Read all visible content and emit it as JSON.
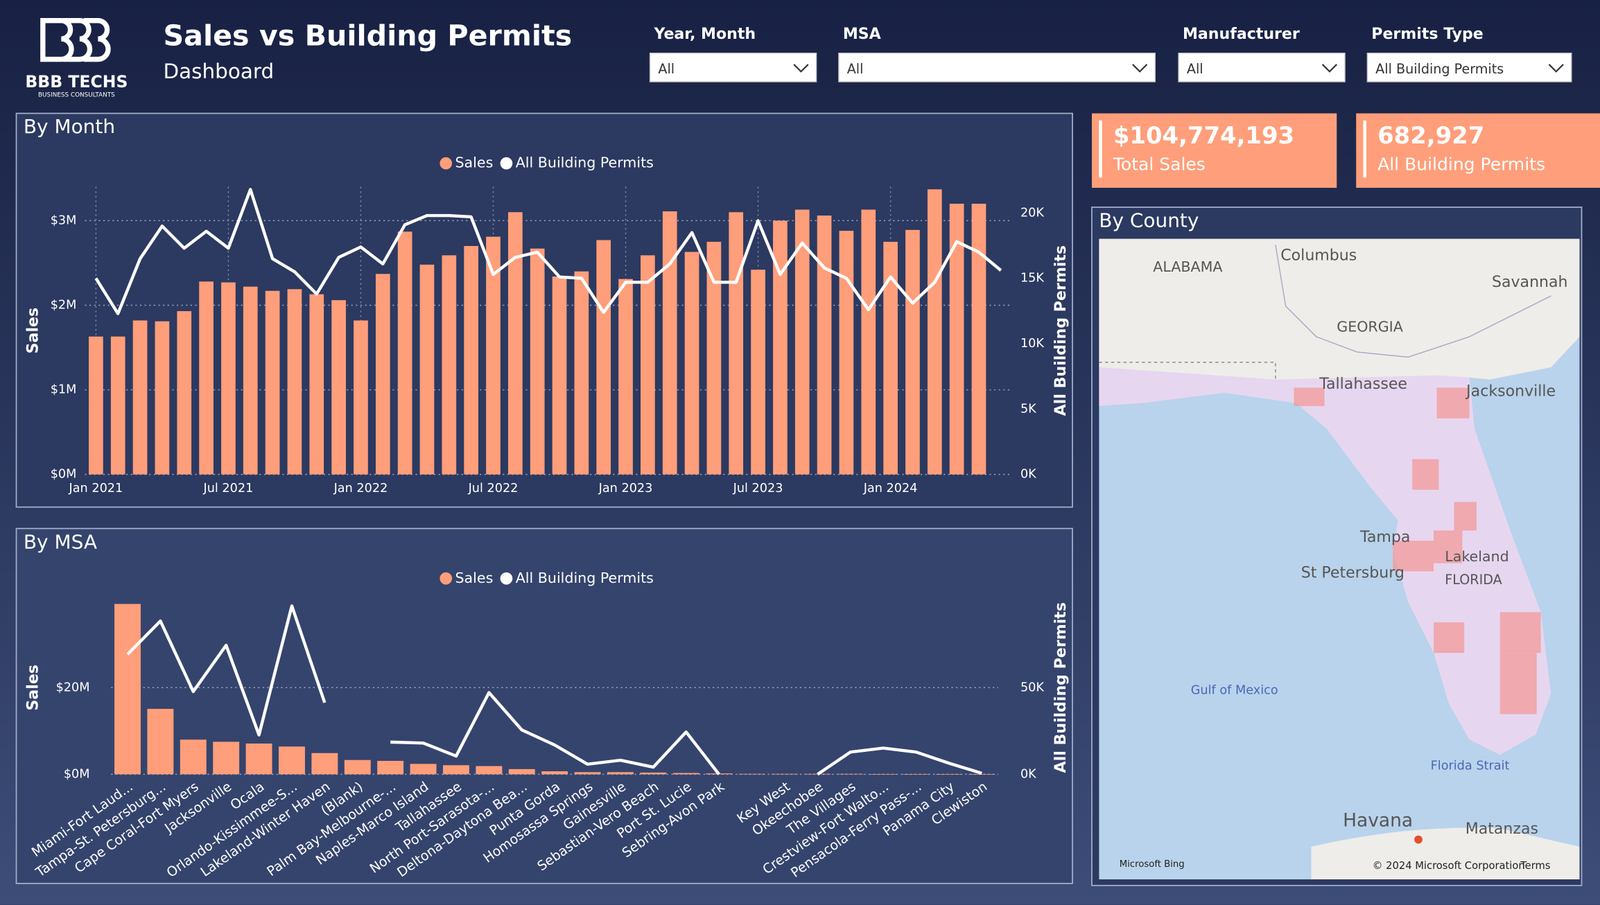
{
  "header": {
    "logo": "BBB TECHS",
    "logo_subtitle": "BUSINESS CONSULTANTS",
    "title": "Sales vs Building Permits",
    "subtitle": "Dashboard"
  },
  "filters": [
    {
      "label": "Year, Month",
      "value": "All"
    },
    {
      "label": "MSA",
      "value": "All"
    },
    {
      "label": "Manufacturer",
      "value": "All"
    },
    {
      "label": "Permits Type",
      "value": "All Building Permits"
    }
  ],
  "kpis": [
    {
      "value": "$104,774,193",
      "label": "Total Sales"
    },
    {
      "value": "682,927",
      "label": "All Building Permits"
    }
  ],
  "map": {
    "title": "By County",
    "labels": [
      "ALABAMA",
      "Columbus",
      "GEORGIA",
      "Savannah",
      "Tallahassee",
      "Jacksonville",
      "Tampa",
      "St Petersburg",
      "Lakeland",
      "FLORIDA",
      "Gulf of Mexico",
      "Florida Strait",
      "Havana",
      "Matanzas",
      "Microsoft Bing",
      "© 2024 Microsoft Corporation",
      "Terms"
    ]
  },
  "chart_data": [
    {
      "type": "combo",
      "title": "By Month",
      "categories": [
        "Jan 2021",
        null,
        null,
        null,
        null,
        null,
        "Jul 2021",
        null,
        null,
        null,
        null,
        null,
        "Jan 2022",
        null,
        null,
        null,
        null,
        null,
        "Jul 2022",
        null,
        null,
        null,
        null,
        null,
        "Jan 2023",
        null,
        null,
        null,
        null,
        null,
        "Jul 2023",
        null,
        null,
        null,
        null,
        null,
        "Jan 2024",
        null,
        null,
        null,
        null,
        null
      ],
      "series": [
        {
          "name": "Sales",
          "kind": "bar",
          "color": "#ff9e7a",
          "values": [
            1.63,
            1.63,
            1.82,
            1.81,
            1.93,
            2.28,
            2.27,
            2.22,
            2.17,
            2.19,
            2.13,
            2.06,
            1.82,
            2.37,
            2.87,
            2.48,
            2.59,
            2.7,
            2.81,
            3.1,
            2.67,
            2.34,
            2.4,
            2.77,
            2.31,
            2.59,
            3.11,
            2.63,
            2.75,
            3.1,
            2.42,
            3.0,
            3.13,
            3.06,
            2.88,
            3.13,
            2.75,
            2.89,
            3.37,
            3.2,
            3.2,
            null
          ]
        },
        {
          "name": "All Building Permits",
          "kind": "line",
          "axis": "y2",
          "color": "#ffffff",
          "values": [
            15000,
            12300,
            16500,
            19000,
            17300,
            18600,
            17300,
            21800,
            16500,
            15500,
            13800,
            16600,
            17400,
            16100,
            19100,
            19800,
            19800,
            19700,
            15300,
            16600,
            17000,
            15100,
            15000,
            12400,
            14700,
            14700,
            16100,
            18500,
            14700,
            14700,
            19400,
            15300,
            17700,
            15800,
            15000,
            12600,
            15100,
            13100,
            14700,
            17800,
            17000,
            15600
          ]
        }
      ],
      "ylim": [
        0,
        3.4
      ],
      "yticks": [
        {
          "value": 0,
          "label": "$0M"
        },
        {
          "value": 1,
          "label": "$1M"
        },
        {
          "value": 2,
          "label": "$2M"
        },
        {
          "value": 3,
          "label": "$3M"
        }
      ],
      "y2lim": [
        0,
        22000
      ],
      "y2ticks": [
        {
          "value": 0,
          "label": "0K"
        },
        {
          "value": 5000,
          "label": "5K"
        },
        {
          "value": 10000,
          "label": "10K"
        },
        {
          "value": 15000,
          "label": "15K"
        },
        {
          "value": 20000,
          "label": "20K"
        }
      ],
      "y_label": "Sales",
      "y2_label": "All Building Permits",
      "grid": true,
      "legend": "top"
    },
    {
      "type": "combo",
      "title": "By MSA",
      "categories": [
        "Miami-Fort Laud...",
        "Tampa-St. Petersburg...",
        "Cape Coral-Fort Myers",
        "Jacksonville",
        "Ocala",
        "Orlando-Kissimmee-S...",
        "Lakeland-Winter Haven",
        "(Blank)",
        "Palm Bay-Melbourne-...",
        "Naples-Marco Island",
        "Tallahassee",
        "North Port-Sarasota-...",
        "Deltona-Daytona Bea...",
        "Punta Gorda",
        "Homosassa Springs",
        "Gainesville",
        "Sebastian-Vero Beach",
        "Port St. Lucie",
        "Sebring-Avon Park",
        null,
        "Key West",
        "Okeechobee",
        "The Villages",
        "Crestview-Fort Walto...",
        "Pensacola-Ferry Pass-...",
        "Panama City",
        "Clewiston"
      ],
      "series": [
        {
          "name": "Sales",
          "kind": "bar",
          "color": "#ff9e7a",
          "values": [
            39.3,
            15.1,
            8.0,
            7.5,
            7.1,
            6.4,
            4.9,
            3.3,
            3.1,
            2.4,
            2.1,
            1.9,
            1.2,
            0.7,
            0.5,
            0.5,
            0.4,
            0.3,
            0.2,
            0.1,
            0.1,
            0.1,
            0.1,
            0.05,
            0.05,
            0.05,
            0.02
          ]
        },
        {
          "name": "All Building Permits",
          "kind": "line",
          "axis": "y2",
          "color": "#ffffff",
          "values": [
            69200,
            88400,
            47700,
            74400,
            22700,
            97100,
            41300,
            null,
            18600,
            18000,
            10500,
            47100,
            25600,
            16900,
            5800,
            8100,
            4100,
            24400,
            0,
            null,
            null,
            0,
            12800,
            15100,
            12800,
            6400,
            600
          ]
        }
      ],
      "ylim": [
        0,
        40
      ],
      "yticks": [
        {
          "value": 0,
          "label": "$0M"
        },
        {
          "value": 20,
          "label": "$20M"
        }
      ],
      "y2lim": [
        0,
        100000
      ],
      "y2ticks": [
        {
          "value": 0,
          "label": "0K"
        },
        {
          "value": 50000,
          "label": "50K"
        }
      ],
      "y_label": "Sales",
      "y2_label": "All Building Permits",
      "grid": true,
      "legend": "top"
    }
  ]
}
